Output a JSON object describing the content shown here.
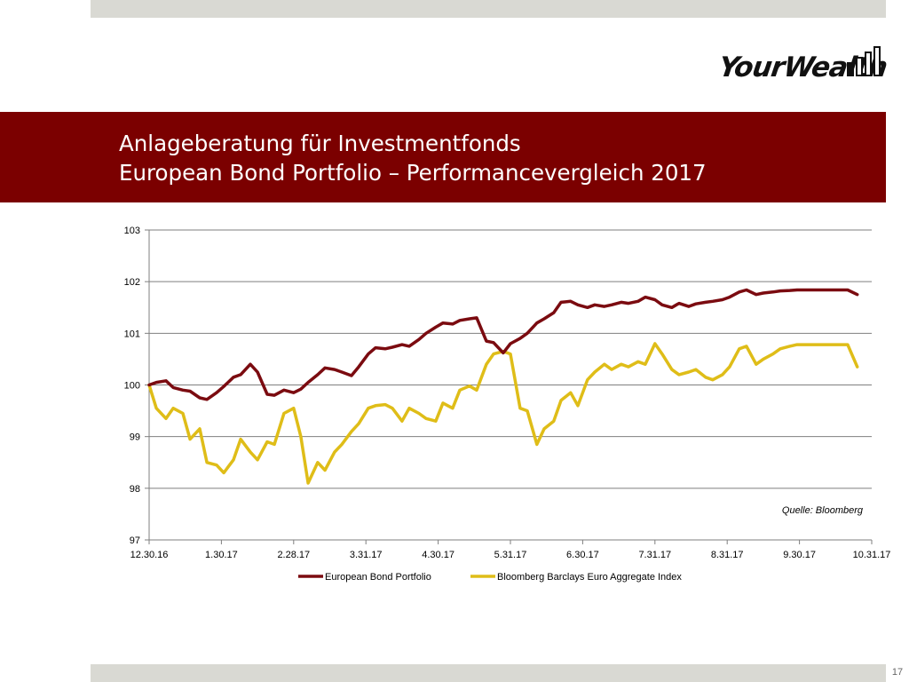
{
  "header": {
    "title_line1": "Anlageberatung für Investmentfonds",
    "title_line2": "European Bond Portfolio – Performancevergleich 2017"
  },
  "logo": {
    "text": "YourWealth"
  },
  "page_number": "17",
  "colors": {
    "header_band": "#7b0000",
    "series1": "#7b0b10",
    "series2": "#dfbd18",
    "bars": "#d9d9d3"
  },
  "chart_data": {
    "type": "line",
    "title": "",
    "xlabel": "",
    "ylabel": "",
    "ylim": [
      97,
      103
    ],
    "yticks": [
      97,
      98,
      99,
      100,
      101,
      102,
      103
    ],
    "xticks": [
      "12.30.16",
      "1.30.17",
      "2.28.17",
      "3.31.17",
      "4.30.17",
      "5.31.17",
      "6.30.17",
      "7.31.17",
      "8.31.17",
      "9.30.17",
      "10.31.17"
    ],
    "grid": "horizontal",
    "legend_position": "bottom",
    "source": "Quelle: Bloomberg",
    "series": [
      {
        "name": "European Bond Portfolio",
        "x": [
          0,
          3,
          7,
          10,
          14,
          17,
          21,
          24,
          28,
          31,
          35,
          38,
          42,
          45,
          49,
          52,
          56,
          60,
          63,
          66,
          70,
          73,
          77,
          80,
          84,
          87,
          91,
          94,
          98,
          101,
          105,
          108,
          112,
          115,
          119,
          122,
          126,
          129,
          133,
          136,
          140,
          143,
          147,
          150,
          154,
          157,
          161,
          164,
          168,
          171,
          175,
          178,
          182,
          185,
          189,
          192,
          196,
          199,
          203,
          206,
          210,
          213,
          217,
          220,
          224,
          227,
          231,
          234,
          238,
          241,
          245,
          248,
          252,
          255,
          259,
          262,
          266,
          269,
          273,
          276,
          280,
          283,
          287,
          290,
          294
        ],
        "values": [
          100.0,
          100.05,
          100.08,
          99.95,
          99.9,
          99.88,
          99.75,
          99.72,
          99.85,
          99.97,
          100.15,
          100.2,
          100.4,
          100.25,
          99.82,
          99.8,
          99.9,
          99.85,
          99.92,
          100.05,
          100.2,
          100.33,
          100.3,
          100.25,
          100.18,
          100.35,
          100.6,
          100.72,
          100.7,
          100.73,
          100.78,
          100.75,
          100.88,
          101.0,
          101.12,
          101.2,
          101.18,
          101.25,
          101.28,
          101.3,
          100.85,
          100.82,
          100.62,
          100.8,
          100.9,
          101.0,
          101.2,
          101.28,
          101.4,
          101.6,
          101.62,
          101.55,
          101.5,
          101.55,
          101.52,
          101.55,
          101.6,
          101.58,
          101.62,
          101.7,
          101.65,
          101.55,
          101.5,
          101.58,
          101.52,
          101.57,
          101.6,
          101.62,
          101.65,
          101.7,
          101.8,
          101.84,
          101.75,
          101.78,
          101.8,
          101.82,
          101.83,
          101.84,
          101.84,
          101.84,
          101.84,
          101.84,
          101.84,
          101.84,
          101.75
        ]
      },
      {
        "name": "Bloomberg Barclays Euro Aggregate Index",
        "x": [
          0,
          3,
          7,
          10,
          14,
          17,
          21,
          24,
          28,
          31,
          35,
          38,
          42,
          45,
          49,
          52,
          56,
          60,
          63,
          66,
          70,
          73,
          77,
          80,
          84,
          87,
          91,
          94,
          98,
          101,
          105,
          108,
          112,
          115,
          119,
          122,
          126,
          129,
          133,
          136,
          140,
          143,
          147,
          150,
          154,
          157,
          161,
          164,
          168,
          171,
          175,
          178,
          182,
          185,
          189,
          192,
          196,
          199,
          203,
          206,
          210,
          213,
          217,
          220,
          224,
          227,
          231,
          234,
          238,
          241,
          245,
          248,
          252,
          255,
          259,
          262,
          266,
          269,
          273,
          276,
          280,
          283,
          287,
          290,
          294
        ],
        "values": [
          100.0,
          99.55,
          99.35,
          99.55,
          99.45,
          98.95,
          99.15,
          98.5,
          98.45,
          98.3,
          98.55,
          98.95,
          98.7,
          98.55,
          98.9,
          98.85,
          99.45,
          99.55,
          99.0,
          98.1,
          98.5,
          98.35,
          98.7,
          98.85,
          99.1,
          99.25,
          99.55,
          99.6,
          99.62,
          99.55,
          99.3,
          99.55,
          99.45,
          99.35,
          99.3,
          99.65,
          99.55,
          99.9,
          99.98,
          99.9,
          100.4,
          100.6,
          100.65,
          100.6,
          99.55,
          99.5,
          98.85,
          99.15,
          99.3,
          99.7,
          99.85,
          99.6,
          100.1,
          100.25,
          100.4,
          100.3,
          100.4,
          100.35,
          100.45,
          100.4,
          100.8,
          100.6,
          100.3,
          100.2,
          100.25,
          100.3,
          100.15,
          100.1,
          100.2,
          100.35,
          100.7,
          100.75,
          100.4,
          100.5,
          100.6,
          100.7,
          100.75,
          100.78,
          100.78,
          100.78,
          100.78,
          100.78,
          100.78,
          100.78,
          100.35
        ]
      }
    ]
  }
}
